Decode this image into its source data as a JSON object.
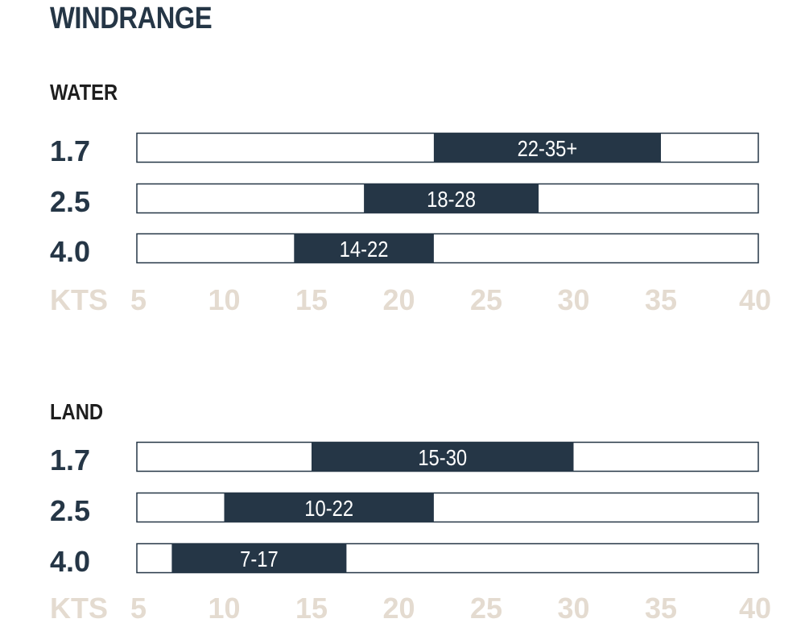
{
  "title": "WINDRANGE",
  "colors": {
    "bar_fill": "#253646",
    "track_border": "#253646",
    "axis_text": "#e4dbd0",
    "title_text": "#253646"
  },
  "chart_data": [
    {
      "type": "bar",
      "orientation": "horizontal-range",
      "title": "WATER",
      "categories": [
        "1.7",
        "2.5",
        "4.0"
      ],
      "ranges": [
        {
          "label": "22-35+",
          "min": 22,
          "max": 35
        },
        {
          "label": "18-28",
          "min": 18,
          "max": 28
        },
        {
          "label": "14-22",
          "min": 14,
          "max": 22
        }
      ],
      "xlabel": "KTS",
      "xlim": [
        5,
        40
      ],
      "xticks": [
        5,
        10,
        15,
        20,
        25,
        30,
        35,
        40
      ]
    },
    {
      "type": "bar",
      "orientation": "horizontal-range",
      "title": "LAND",
      "categories": [
        "1.7",
        "2.5",
        "4.0"
      ],
      "ranges": [
        {
          "label": "15-30",
          "min": 15,
          "max": 30
        },
        {
          "label": "10-22",
          "min": 10,
          "max": 22
        },
        {
          "label": "7-17",
          "min": 7,
          "max": 17
        }
      ],
      "xlabel": "KTS",
      "xlim": [
        5,
        40
      ],
      "xticks": [
        5,
        10,
        15,
        20,
        25,
        30,
        35,
        40
      ]
    }
  ]
}
